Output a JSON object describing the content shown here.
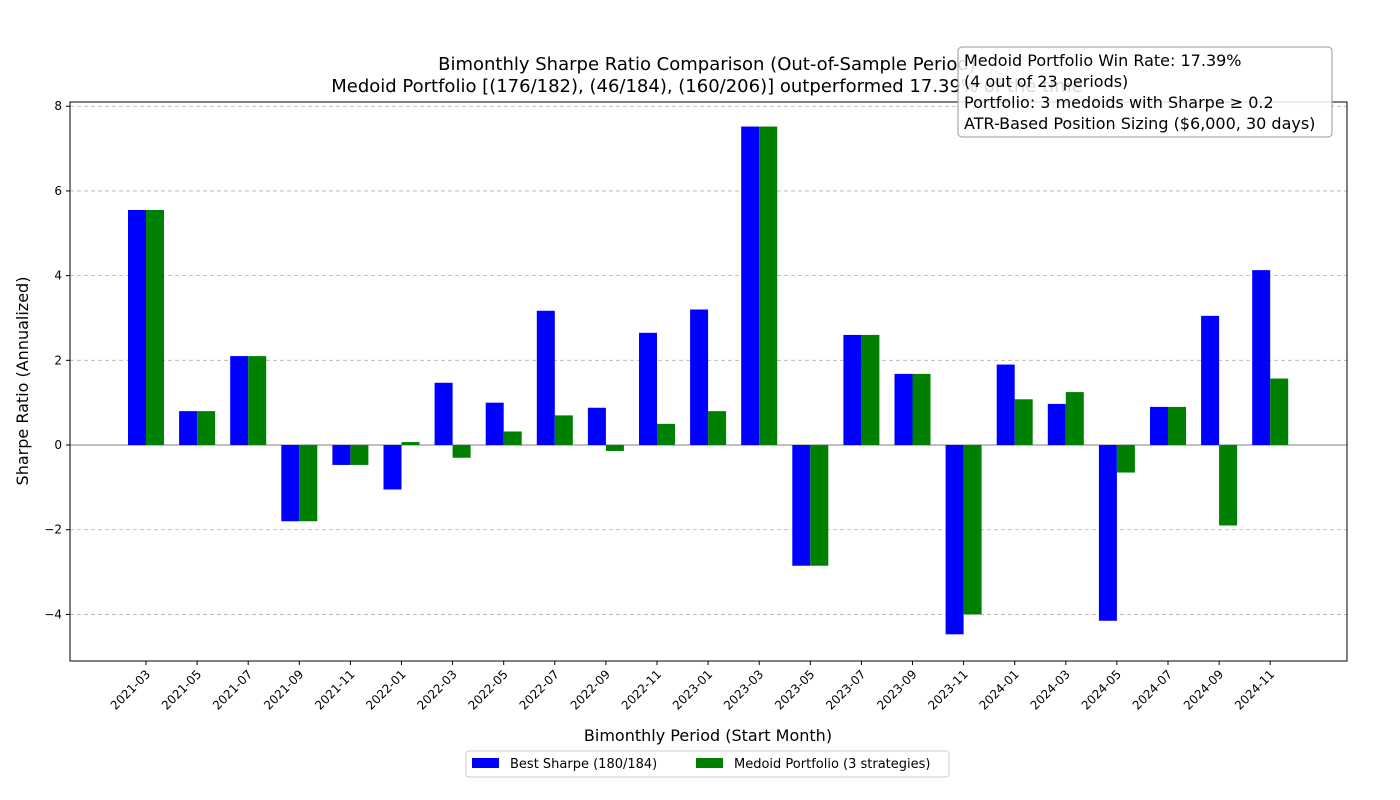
{
  "chart_data": {
    "type": "bar",
    "title": "Bimonthly Sharpe Ratio Comparison (Out-of-Sample Period)",
    "subtitle": "Medoid Portfolio [(176/182), (46/184), (160/206)] outperformed 17.39% of the time",
    "xlabel": "Bimonthly Period (Start Month)",
    "ylabel": "Sharpe Ratio (Annualized)",
    "ylim": [
      -5.1,
      8.1
    ],
    "yticks": [
      -4,
      -2,
      0,
      2,
      4,
      6,
      8
    ],
    "ytick_labels": [
      "−4",
      "−2",
      "0",
      "2",
      "4",
      "6",
      "8"
    ],
    "grid": "y-dashed",
    "legend_position": "bottom-center",
    "categories": [
      "2021-03",
      "2021-05",
      "2021-07",
      "2021-09",
      "2021-11",
      "2022-01",
      "2022-03",
      "2022-05",
      "2022-07",
      "2022-09",
      "2022-11",
      "2023-01",
      "2023-03",
      "2023-05",
      "2023-07",
      "2023-09",
      "2023-11",
      "2024-01",
      "2024-03",
      "2024-05",
      "2024-07",
      "2024-09",
      "2024-11"
    ],
    "series": [
      {
        "name": "Best Sharpe (180/184)",
        "color": "#0000ff",
        "values": [
          5.55,
          0.8,
          2.1,
          -1.8,
          -0.47,
          -1.05,
          1.47,
          1.0,
          3.17,
          0.88,
          2.65,
          3.2,
          7.52,
          -2.85,
          2.6,
          1.68,
          -4.47,
          1.9,
          0.97,
          -4.15,
          0.9,
          3.05,
          4.13
        ]
      },
      {
        "name": "Medoid Portfolio (3 strategies)",
        "color": "#008000",
        "values": [
          5.55,
          0.8,
          2.1,
          -1.8,
          -0.47,
          0.07,
          -0.3,
          0.32,
          0.7,
          -0.14,
          0.5,
          0.8,
          7.52,
          -2.85,
          2.6,
          1.68,
          -4.0,
          1.08,
          1.25,
          -0.65,
          0.9,
          -1.9,
          1.57
        ]
      }
    ],
    "stats_box": [
      "Medoid Portfolio Win Rate: 17.39%",
      "(4 out of 23 periods)",
      "Portfolio: 3 medoids with Sharpe ≥ 0.2",
      "ATR-Based Position Sizing ($6,000, 30 days)"
    ]
  }
}
